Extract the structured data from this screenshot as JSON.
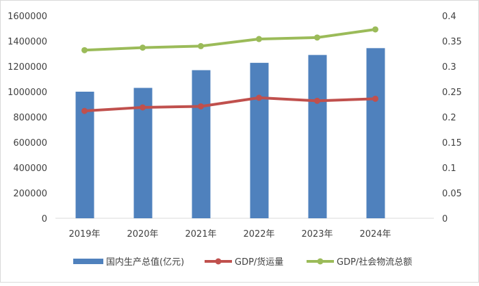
{
  "chart_data": {
    "type": "bar+line",
    "categories": [
      "2019年",
      "2020年",
      "2021年",
      "2022年",
      "2023年",
      "2024年"
    ],
    "series": [
      {
        "name": "国内生产总值(亿元)",
        "type": "bar",
        "axis": "left",
        "color": "#4f81bd",
        "values": [
          1000000,
          1030000,
          1170000,
          1228000,
          1290000,
          1344000
        ]
      },
      {
        "name": "GDP/货运量",
        "type": "line",
        "axis": "right",
        "color": "#c0504d",
        "values": [
          0.212,
          0.219,
          0.221,
          0.238,
          0.232,
          0.236
        ]
      },
      {
        "name": "GDP/社会物流总额",
        "type": "line",
        "axis": "right",
        "color": "#9bbb59",
        "values": [
          0.332,
          0.337,
          0.34,
          0.354,
          0.357,
          0.373
        ]
      }
    ],
    "y_left": {
      "range": [
        0,
        1600000
      ],
      "ticks": [
        "0",
        "200000",
        "400000",
        "600000",
        "800000",
        "1000000",
        "1200000",
        "1400000",
        "1600000"
      ]
    },
    "y_right": {
      "range": [
        0,
        0.4
      ],
      "ticks": [
        "0",
        "0.05",
        "0.1",
        "0.15",
        "0.2",
        "0.25",
        "0.3",
        "0.35",
        "0.4"
      ]
    },
    "grid": false,
    "legend": "bottom"
  }
}
